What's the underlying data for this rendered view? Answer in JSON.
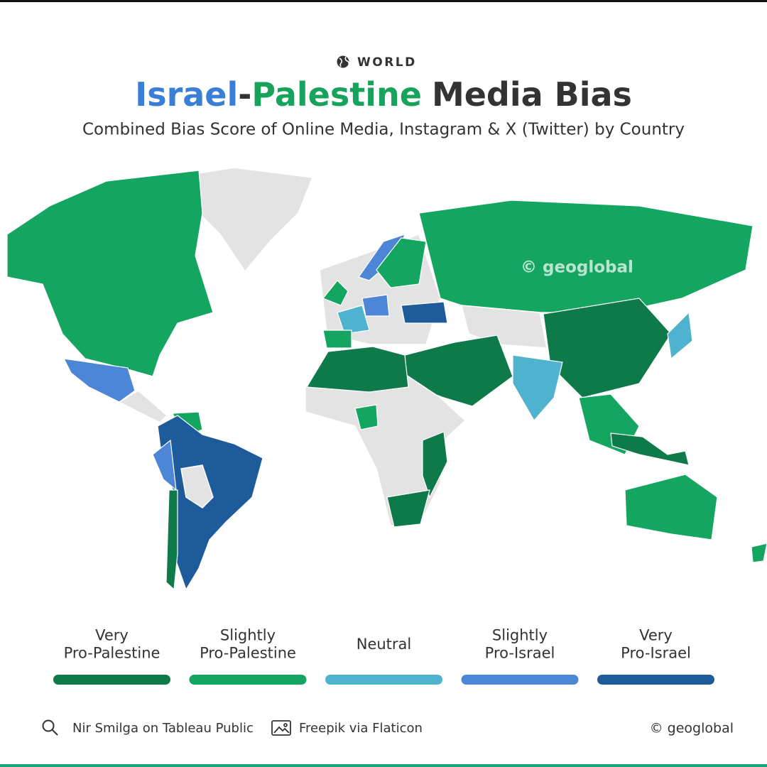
{
  "header": {
    "kicker": "WORLD",
    "title": {
      "israel": "Israel",
      "dash": "-",
      "palestine": "Palestine",
      "rest": "Media Bias"
    },
    "subtitle": "Combined Bias Score of Online Media, Instagram & X (Twitter) by Country"
  },
  "map": {
    "watermark": "© geoglobal"
  },
  "legend": {
    "items": [
      {
        "lines": [
          "Very",
          "Pro-Palestine"
        ],
        "color": "#0e7a4a"
      },
      {
        "lines": [
          "Slightly",
          "Pro-Palestine"
        ],
        "color": "#14a660"
      },
      {
        "lines": [
          "Neutral"
        ],
        "color": "#4fb3cf"
      },
      {
        "lines": [
          "Slightly",
          "Pro-Israel"
        ],
        "color": "#4d86d6"
      },
      {
        "lines": [
          "Very",
          "Pro-Israel"
        ],
        "color": "#1e5b9b"
      }
    ]
  },
  "footer": {
    "source": "Nir Smilga on Tableau Public",
    "icons": "Freepik via Flaticon",
    "copyright": "© geoglobal"
  }
}
